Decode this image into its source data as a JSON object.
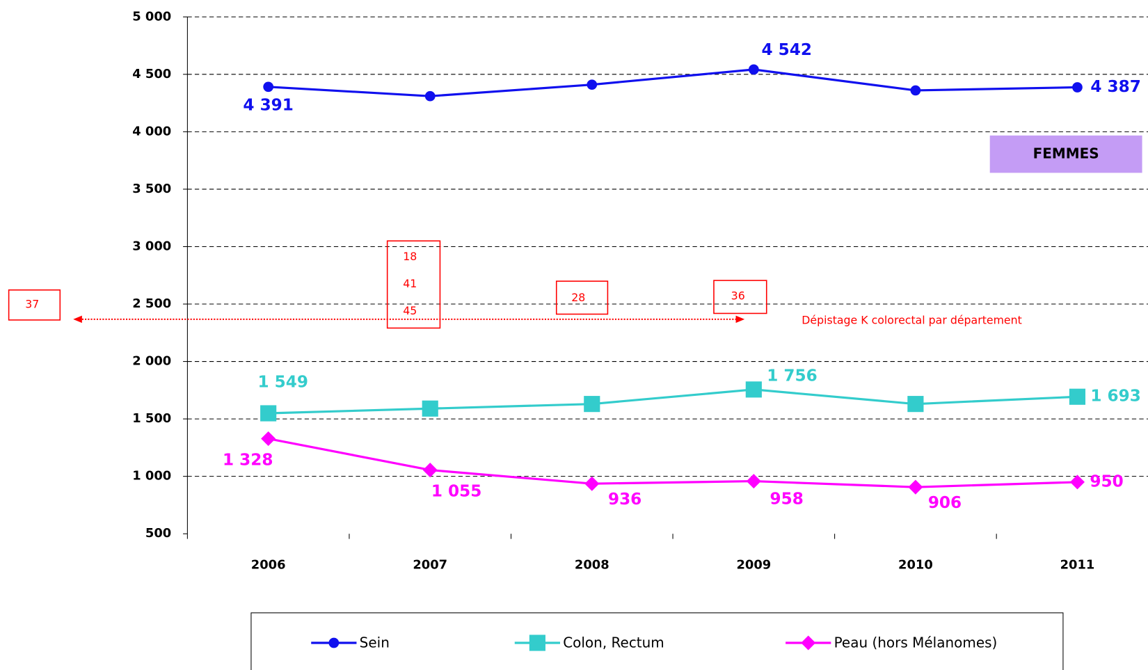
{
  "chart_data": {
    "type": "line",
    "categories": [
      "2006",
      "2007",
      "2008",
      "2009",
      "2010",
      "2011"
    ],
    "ylim": [
      500,
      5000
    ],
    "yticks": [
      500,
      {
        "value": 1000,
        "label": "1 000"
      },
      {
        "value": 1500,
        "label": "1 500"
      },
      {
        "value": 2000,
        "label": "2 000"
      },
      {
        "value": 2500,
        "label": "2 500"
      },
      {
        "value": 3000,
        "label": "3 000"
      },
      {
        "value": 3500,
        "label": "3 500"
      },
      {
        "value": 4000,
        "label": "4 000"
      },
      {
        "value": 4500,
        "label": "4 500"
      },
      {
        "value": 5000,
        "label": "5 000"
      }
    ],
    "grid": true,
    "series": [
      {
        "name": "Sein",
        "color": "#1010ee",
        "marker": "circle",
        "values": [
          4391,
          4310,
          4410,
          4542,
          4360,
          4387
        ],
        "value_labels": [
          "4 391",
          null,
          null,
          "4 542",
          null,
          "4 387"
        ]
      },
      {
        "name": "Colon, Rectum",
        "color": "#33cccc",
        "marker": "square",
        "values": [
          1549,
          1590,
          1630,
          1756,
          1630,
          1693
        ],
        "value_labels": [
          "1 549",
          null,
          null,
          "1 756",
          null,
          "1 693"
        ]
      },
      {
        "name": "Peau (hors Mélanomes)",
        "color": "#ff00ff",
        "marker": "diamond",
        "values": [
          1328,
          1055,
          936,
          958,
          906,
          950
        ],
        "value_labels": [
          "1 328",
          "1 055",
          "936",
          "958",
          "906",
          "950"
        ]
      }
    ],
    "annotations": {
      "label": "FEMMES",
      "note": "Dépistage K colorectal par département",
      "boxes": [
        "37",
        "18",
        "41",
        "45",
        "28",
        "36"
      ]
    }
  }
}
